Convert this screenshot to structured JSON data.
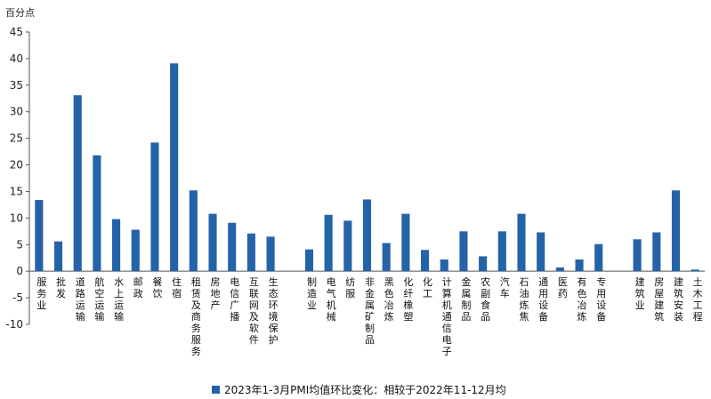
{
  "chart_data": {
    "type": "bar",
    "unit_label": "百分点",
    "ylim": [
      -10,
      45
    ],
    "y_ticks": [
      -10,
      -5,
      0,
      5,
      10,
      15,
      20,
      25,
      30,
      35,
      40,
      45
    ],
    "grid": false,
    "legend_position": "bottom",
    "bar_color": "#2563A8",
    "categories": [
      "服务业",
      "批发",
      "道路运输",
      "航空运输",
      "水上运输",
      "邮政",
      "餐饮",
      "住宿",
      "租赁及商务服务",
      "房地产",
      "电信广播",
      "互联网及软件",
      "生态环境保护",
      "",
      "制造业",
      "电气机械",
      "纺服",
      "非金属矿制品",
      "黑色冶炼",
      "化纤橡塑",
      "化工",
      "计算机通信电子",
      "金属制品",
      "农副食品",
      "汽车",
      "石油炼焦",
      "通用设备",
      "医药",
      "有色冶炼",
      "专用设备",
      "",
      "建筑业",
      "房屋建筑",
      "建筑安装",
      "土木工程"
    ],
    "series": [
      {
        "name": "2023年1-3月PMI均值环比变化：相较于2022年11-12月均",
        "values": [
          13.4,
          5.6,
          33.1,
          21.8,
          9.8,
          7.8,
          24.2,
          39.1,
          15.2,
          10.8,
          9.1,
          7.1,
          6.5,
          null,
          4.1,
          10.6,
          9.5,
          13.5,
          5.3,
          10.8,
          4.0,
          2.2,
          7.5,
          2.8,
          7.5,
          10.8,
          7.3,
          0.7,
          2.2,
          5.1,
          null,
          6.0,
          7.3,
          15.2,
          0.3
        ]
      }
    ]
  }
}
